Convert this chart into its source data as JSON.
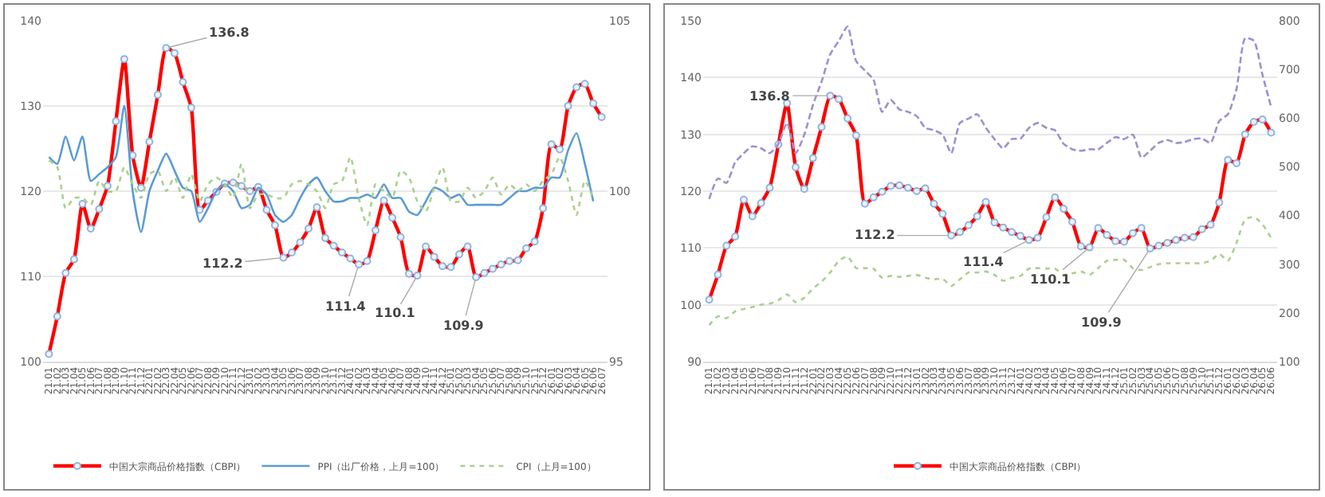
{
  "chart_data": [
    {
      "type": "line",
      "categories": [
        "21.01",
        "21.02",
        "21.03",
        "21.04",
        "21.05",
        "21.06",
        "21.07",
        "21.08",
        "21.09",
        "21.10",
        "21.11",
        "21.12",
        "22.01",
        "22.02",
        "22.03",
        "22.04",
        "22.05",
        "22.06",
        "22.07",
        "22.08",
        "22.09",
        "22.10",
        "22.11",
        "22.12",
        "23.01",
        "23.02",
        "23.03",
        "23.04",
        "23.05",
        "23.06",
        "23.07",
        "23.08",
        "23.09",
        "23.10",
        "23.11",
        "23.12",
        "24.01",
        "24.02",
        "24.03",
        "24.04",
        "24.05",
        "24.06",
        "24.07",
        "24.08",
        "24.09",
        "24.10",
        "24.11",
        "24.12",
        "25.01",
        "25.02",
        "25.03",
        "25.04",
        "25.05",
        "25.06",
        "25.07",
        "25.08",
        "25.09",
        "25.10",
        "25.11",
        "25.12",
        "26.01",
        "26.02",
        "26.03",
        "26.04",
        "26.05",
        "26.06",
        "26.07"
      ],
      "series": [
        {
          "name": "中国大宗商品价格指数（CBPI）",
          "color": "#ff0000",
          "line_style": "solid",
          "marker": "circle",
          "values": [
            100.9,
            105.3,
            110.4,
            112.0,
            118.5,
            115.6,
            117.9,
            120.6,
            128.2,
            135.5,
            124.2,
            120.4,
            125.8,
            131.3,
            136.8,
            136.2,
            132.8,
            129.8,
            117.8,
            118.9,
            119.9,
            120.9,
            121.0,
            120.6,
            120.0,
            120.5,
            117.8,
            116.0,
            112.2,
            112.8,
            114.0,
            115.6,
            118.1,
            114.5,
            113.6,
            112.8,
            112.1,
            111.4,
            111.8,
            115.4,
            118.9,
            116.9,
            114.6,
            110.3,
            110.1,
            113.5,
            112.3,
            111.2,
            111.1,
            112.6,
            113.5,
            109.9,
            110.4,
            110.9,
            111.4,
            111.8,
            111.9,
            113.3,
            114.1,
            118.0,
            125.5,
            124.9,
            130.0,
            132.2,
            132.6,
            130.3,
            128.7
          ]
        },
        {
          "name": "PPI（出厂价格，上月=100）",
          "color": "#5b9bd5",
          "line_style": "solid",
          "axis": "y2",
          "values": [
            101.0,
            100.8,
            101.6,
            100.9,
            101.6,
            100.3,
            100.5,
            100.7,
            101.0,
            102.5,
            100.0,
            98.8,
            100.0,
            100.6,
            101.1,
            100.6,
            100.1,
            100.0,
            99.1,
            99.5,
            100.0,
            100.2,
            100.0,
            99.5,
            99.6,
            100.1,
            99.9,
            99.3,
            99.1,
            99.3,
            99.8,
            100.2,
            100.4,
            100.0,
            99.7,
            99.7,
            99.8,
            99.8,
            99.9,
            99.8,
            100.2,
            99.8,
            99.8,
            99.4,
            99.3,
            99.7,
            100.1,
            100.0,
            99.8,
            99.9,
            99.6,
            99.6,
            99.6,
            99.6,
            99.6,
            99.8,
            100.0,
            100.0,
            100.1,
            100.1,
            100.4,
            100.4,
            101.2,
            101.7,
            100.8,
            99.7,
            null
          ]
        },
        {
          "name": "CPI（上月=100）",
          "color": "#a9d18e",
          "line_style": "dotted",
          "axis": "y2",
          "values": [
            100.9,
            100.7,
            99.5,
            99.8,
            99.8,
            99.6,
            100.3,
            100.0,
            100.0,
            100.7,
            100.2,
            99.8,
            100.5,
            100.6,
            100.0,
            100.4,
            99.8,
            100.5,
            99.7,
            100.2,
            100.4,
            100.2,
            99.8,
            100.8,
            99.5,
            99.9,
            99.9,
            99.8,
            99.8,
            100.2,
            100.3,
            100.2,
            100.0,
            99.5,
            100.2,
            100.3,
            101.0,
            99.8,
            99.0,
            100.2,
            100.0,
            99.8,
            100.6,
            100.4,
            99.7,
            99.4,
            100.1,
            100.7,
            99.7,
            99.7,
            100.1,
            99.8,
            100.0,
            100.4,
            99.9,
            100.2,
            100.0,
            100.2,
            100.0,
            100.3,
            100.5,
            101.0,
            100.3,
            99.3,
            100.3,
            99.8,
            null
          ]
        }
      ],
      "ylim": [
        100,
        140
      ],
      "yticks": [
        100,
        110,
        120,
        130,
        140
      ],
      "y2lim": [
        95,
        105
      ],
      "y2ticks": [
        95,
        100,
        105
      ],
      "grid": "y",
      "legend": "bottom",
      "annotations": [
        {
          "text": "136.8",
          "x": "22.03",
          "y": 136.8
        },
        {
          "text": "112.2",
          "x": "23.05",
          "y": 112.2
        },
        {
          "text": "111.4",
          "x": "24.02",
          "y": 111.4
        },
        {
          "text": "110.1",
          "x": "24.09",
          "y": 110.1
        },
        {
          "text": "109.9",
          "x": "25.04",
          "y": 109.9
        }
      ]
    },
    {
      "type": "line",
      "categories": [
        "21.01",
        "21.02",
        "21.03",
        "21.04",
        "21.05",
        "21.06",
        "21.07",
        "21.08",
        "21.09",
        "21.10",
        "21.11",
        "21.12",
        "22.01",
        "22.02",
        "22.03",
        "22.04",
        "22.05",
        "22.06",
        "22.07",
        "22.08",
        "22.09",
        "22.10",
        "22.11",
        "22.12",
        "23.01",
        "23.02",
        "23.03",
        "23.04",
        "23.05",
        "23.06",
        "23.07",
        "23.08",
        "23.09",
        "23.10",
        "23.11",
        "23.12",
        "24.01",
        "24.02",
        "24.03",
        "24.04",
        "24.05",
        "24.06",
        "24.07",
        "24.08",
        "24.09",
        "24.10",
        "24.11",
        "24.12",
        "25.01",
        "25.02",
        "25.03",
        "25.04",
        "25.05",
        "25.06",
        "25.07",
        "25.08",
        "25.09",
        "25.10",
        "25.11",
        "25.12",
        "26.01",
        "26.02",
        "26.03",
        "26.04",
        "26.05",
        "26.06"
      ],
      "series": [
        {
          "name": "中国大宗商品价格指数（CBPI）",
          "color": "#ff0000",
          "line_style": "solid",
          "marker": "circle",
          "values": [
            100.9,
            105.3,
            110.4,
            112.0,
            118.5,
            115.6,
            117.9,
            120.6,
            128.2,
            135.5,
            124.2,
            120.4,
            125.8,
            131.3,
            136.8,
            136.2,
            132.8,
            129.8,
            117.8,
            118.9,
            119.9,
            120.9,
            121.0,
            120.6,
            120.0,
            120.5,
            117.8,
            116.0,
            112.2,
            112.8,
            114.0,
            115.6,
            118.1,
            114.5,
            113.6,
            112.8,
            112.1,
            111.4,
            111.8,
            115.4,
            118.9,
            116.9,
            114.6,
            110.3,
            110.1,
            113.5,
            112.3,
            111.2,
            111.1,
            112.6,
            113.5,
            109.9,
            110.4,
            110.9,
            111.4,
            111.8,
            111.9,
            113.3,
            114.1,
            118.0,
            125.5,
            124.9,
            130.0,
            132.2,
            132.6,
            130.3
          ]
        },
        {
          "color": "#a9d18e",
          "line_style": "dotted",
          "axis": "y2",
          "values": [
            175,
            193,
            189,
            203,
            208,
            212,
            217,
            219,
            226,
            238,
            222,
            231,
            250,
            264,
            283,
            307,
            316,
            292,
            292,
            291,
            272,
            276,
            274,
            276,
            278,
            272,
            269,
            270,
            255,
            269,
            283,
            283,
            285,
            278,
            266,
            272,
            276,
            291,
            292,
            291,
            291,
            278,
            281,
            285,
            278,
            292,
            307,
            309,
            309,
            292,
            288,
            294,
            300,
            302,
            302,
            302,
            302,
            302,
            307,
            321,
            307,
            344,
            392,
            397,
            382,
            354
          ]
        },
        {
          "color": "#9f8fd0",
          "line_style": "dashed",
          "axis": "y2",
          "values": [
            434,
            476,
            467,
            509,
            528,
            542,
            538,
            528,
            547,
            590,
            528,
            566,
            627,
            675,
            731,
            759,
            788,
            717,
            698,
            679,
            613,
            637,
            618,
            613,
            604,
            580,
            575,
            566,
            528,
            590,
            599,
            608,
            580,
            557,
            538,
            557,
            558,
            580,
            590,
            580,
            575,
            547,
            536,
            533,
            536,
            536,
            549,
            561,
            557,
            566,
            519,
            533,
            549,
            555,
            549,
            551,
            557,
            558,
            549,
            594,
            608,
            660,
            764,
            759,
            689,
            623
          ]
        }
      ],
      "ylim": [
        90,
        150
      ],
      "yticks": [
        90,
        100,
        110,
        120,
        130,
        140,
        150
      ],
      "y2lim": [
        100,
        800
      ],
      "y2ticks": [
        100,
        200,
        300,
        400,
        500,
        600,
        700,
        800
      ],
      "grid": "y",
      "legend": "bottom",
      "annotations": [
        {
          "text": "136.8",
          "x": "22.03",
          "y": 136.8
        },
        {
          "text": "112.2",
          "x": "23.05",
          "y": 112.2
        },
        {
          "text": "111.4",
          "x": "24.02",
          "y": 111.4
        },
        {
          "text": "110.1",
          "x": "24.09",
          "y": 110.1
        },
        {
          "text": "109.9",
          "x": "25.04",
          "y": 109.9
        }
      ]
    }
  ]
}
